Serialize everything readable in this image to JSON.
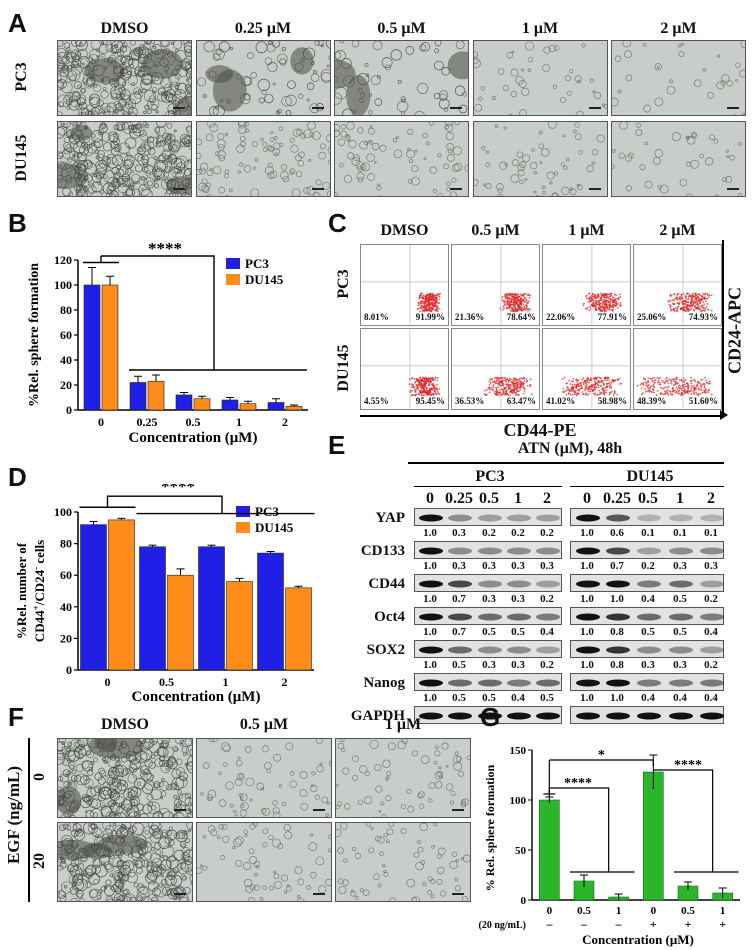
{
  "panels": {
    "A": "A",
    "B": "B",
    "C": "C",
    "D": "D",
    "E": "E",
    "F": "F",
    "G": "G"
  },
  "panelA": {
    "columns": [
      "DMSO",
      "0.25 μM",
      "0.5 μM",
      "1 μM",
      "2 μM"
    ],
    "rows": [
      "PC3",
      "DU145"
    ]
  },
  "panelB": {
    "chart_data": {
      "type": "bar",
      "categories": [
        "0",
        "0.25",
        "0.5",
        "1",
        "2"
      ],
      "series": [
        {
          "name": "PC3",
          "values": [
            100,
            22,
            12,
            8,
            6
          ],
          "errors": [
            14,
            5,
            2,
            2,
            3
          ],
          "color": "#1f1fe6"
        },
        {
          "name": "DU145",
          "values": [
            100,
            23,
            9,
            5,
            3
          ],
          "errors": [
            7,
            5,
            2,
            2,
            1
          ],
          "color": "#ff8c1a"
        }
      ],
      "ylabel": "%Rel. sphere formation",
      "xlabel": "Concentration (μM)",
      "ylim": [
        0,
        120
      ],
      "yticks": [
        "0",
        "20",
        "40",
        "60",
        "80",
        "100",
        "120"
      ],
      "annotation": "****",
      "legend": "top-right"
    }
  },
  "panelC": {
    "columns": [
      "DMSO",
      "0.5 μM",
      "1 μM",
      "2 μM"
    ],
    "rows": [
      "PC3",
      "DU145"
    ],
    "quadrants": [
      [
        [
          "8.01%",
          "91.99%"
        ],
        [
          "21.36%",
          "78.64%"
        ],
        [
          "22.06%",
          "77.91%"
        ],
        [
          "25.06%",
          "74.93%"
        ]
      ],
      [
        [
          "4.55%",
          "95.45%"
        ],
        [
          "36.53%",
          "63.47%"
        ],
        [
          "41.02%",
          "58.98%"
        ],
        [
          "48.39%",
          "51.60%"
        ]
      ]
    ],
    "xaxis": "CD44-PE",
    "yaxis": "CD24-APC"
  },
  "panelD": {
    "chart_data": {
      "type": "bar",
      "categories": [
        "0",
        "0.5",
        "1",
        "2"
      ],
      "series": [
        {
          "name": "PC3",
          "values": [
            92,
            78,
            78,
            74
          ],
          "errors": [
            2,
            1,
            1,
            1
          ],
          "color": "#1f1fe6"
        },
        {
          "name": "DU145",
          "values": [
            95,
            60,
            56,
            52
          ],
          "errors": [
            1,
            4,
            2,
            1
          ],
          "color": "#ff8c1a"
        }
      ],
      "ylabel_1": "%Rel. number of",
      "ylabel_2": "CD44",
      "ylabel_sup1": "+",
      "ylabel_3": "/CD24",
      "ylabel_sup2": "-",
      "ylabel_4": " cells",
      "xlabel": "Concentration (μM)",
      "ylim": [
        0,
        100
      ],
      "yticks": [
        "0",
        "20",
        "40",
        "60",
        "80",
        "100"
      ],
      "annotation": "****",
      "legend": "top-right"
    }
  },
  "panelE": {
    "title": "ATN (μM), 48h",
    "groups": [
      "PC3",
      "DU145"
    ],
    "conc": [
      "0",
      "0.25",
      "0.5",
      "1",
      "2"
    ],
    "blots": [
      {
        "name": "YAP",
        "pc3": [
          "1.0",
          "0.3",
          "0.2",
          "0.2",
          "0.2"
        ],
        "du145": [
          "1.0",
          "0.6",
          "0.1",
          "0.1",
          "0.1"
        ]
      },
      {
        "name": "CD133",
        "pc3": [
          "1.0",
          "0.3",
          "0.3",
          "0.3",
          "0.3"
        ],
        "du145": [
          "1.0",
          "0.7",
          "0.2",
          "0.3",
          "0.3"
        ]
      },
      {
        "name": "CD44",
        "pc3": [
          "1.0",
          "0.7",
          "0.3",
          "0.3",
          "0.2"
        ],
        "du145": [
          "1.0",
          "1.0",
          "0.4",
          "0.5",
          "0.2"
        ]
      },
      {
        "name": "Oct4",
        "pc3": [
          "1.0",
          "0.7",
          "0.5",
          "0.5",
          "0.4"
        ],
        "du145": [
          "1.0",
          "0.8",
          "0.5",
          "0.5",
          "0.4"
        ]
      },
      {
        "name": "SOX2",
        "pc3": [
          "1.0",
          "0.5",
          "0.3",
          "0.3",
          "0.2"
        ],
        "du145": [
          "1.0",
          "0.8",
          "0.3",
          "0.3",
          "0.2"
        ]
      },
      {
        "name": "Nanog",
        "pc3": [
          "1.0",
          "0.5",
          "0.5",
          "0.4",
          "0.5"
        ],
        "du145": [
          "1.0",
          "1.0",
          "0.4",
          "0.4",
          "0.4"
        ]
      },
      {
        "name": "GAPDH",
        "pc3": [],
        "du145": []
      }
    ]
  },
  "panelF": {
    "columns": [
      "DMSO",
      "0.5 μM",
      "1 μM"
    ],
    "rows": [
      "0",
      "20"
    ],
    "rowaxis": "EGF (ng/mL)"
  },
  "panelG": {
    "chart_data": {
      "type": "bar",
      "categories": [
        "0",
        "0.5",
        "1",
        "0",
        "0.5",
        "1"
      ],
      "egf": [
        "–",
        "–",
        "–",
        "+",
        "+",
        "+"
      ],
      "values": [
        100,
        19,
        3,
        128,
        14,
        7
      ],
      "errors": [
        3,
        6,
        3,
        17,
        4,
        5
      ],
      "color": "#2ab52a",
      "ylabel": "% Rel. sphere formation",
      "xlabel": "Concentration (μM)",
      "egf_label": "EGF (20 ng/mL)",
      "ylim": [
        0,
        150
      ],
      "yticks": [
        "0",
        "50",
        "100",
        "150"
      ],
      "annotations": [
        "*",
        "****",
        "****"
      ]
    }
  }
}
